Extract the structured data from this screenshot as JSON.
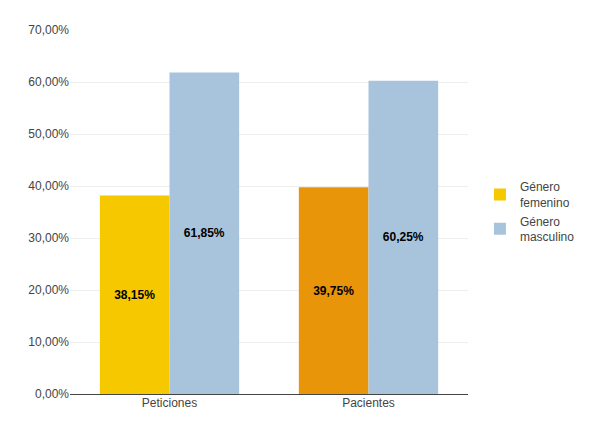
{
  "chart_data": {
    "type": "bar",
    "categories": [
      "Peticiones",
      "Pacientes"
    ],
    "series": [
      {
        "name": "Género\nfemenino",
        "colors": [
          "#F5C800",
          "#E8950A"
        ],
        "values": [
          0.3815,
          0.3975
        ],
        "value_labels": [
          "38,15%",
          "39,75%"
        ]
      },
      {
        "name": "Género\nmasculino",
        "color": "#A8C4DC",
        "values": [
          0.6185,
          0.6025
        ],
        "value_labels": [
          "61,85%",
          "60,25%"
        ]
      }
    ],
    "ylim": [
      0,
      0.7
    ],
    "yticks": [
      {
        "value": 0.0,
        "label": "0,00%"
      },
      {
        "value": 0.1,
        "label": "10,00%"
      },
      {
        "value": 0.2,
        "label": "20,00%"
      },
      {
        "value": 0.3,
        "label": "30,00%"
      },
      {
        "value": 0.4,
        "label": "40,00%"
      },
      {
        "value": 0.5,
        "label": "50,00%"
      },
      {
        "value": 0.6,
        "label": "60,00%"
      },
      {
        "value": 0.7,
        "label": "70,00%"
      }
    ],
    "grid": true,
    "data_labels": true
  }
}
